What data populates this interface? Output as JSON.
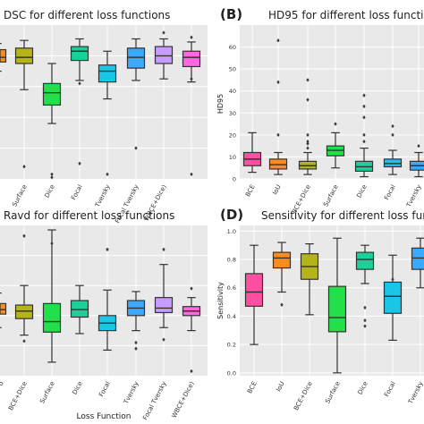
{
  "chart_data": [
    {
      "type": "box",
      "panel_label": "",
      "title": "DSC for different loss functions",
      "xlabel": "",
      "ylabel": "",
      "yticks": [],
      "ylim": [
        0.0,
        1.0
      ],
      "categories": [
        "BCE+Dice",
        "Surface",
        "Dice",
        "Focal",
        "Tversky",
        "Focal Tversky",
        "WBCE+Dice)"
      ],
      "first_box_partial": true,
      "colors": [
        "#ff8c1a",
        "#b5b51a",
        "#22e04a",
        "#1bd19a",
        "#19c6e6",
        "#3aa9ff",
        "#c89bff",
        "#ff66e0"
      ],
      "boxes": [
        {
          "q1": 0.76,
          "median": 0.79,
          "q3": 0.84,
          "whislo": 0.7,
          "whishi": 0.88,
          "fliers": []
        },
        {
          "q1": 0.75,
          "median": 0.79,
          "q3": 0.85,
          "whislo": 0.58,
          "whishi": 0.9,
          "fliers": [
            0.08
          ]
        },
        {
          "q1": 0.48,
          "median": 0.56,
          "q3": 0.62,
          "whislo": 0.36,
          "whishi": 0.75,
          "fliers": [
            0.03,
            0.01
          ]
        },
        {
          "q1": 0.77,
          "median": 0.83,
          "q3": 0.86,
          "whislo": 0.64,
          "whishi": 0.91,
          "fliers": [
            0.62,
            0.1
          ]
        },
        {
          "q1": 0.63,
          "median": 0.7,
          "q3": 0.74,
          "whislo": 0.52,
          "whishi": 0.83,
          "fliers": [
            0.03
          ]
        },
        {
          "q1": 0.72,
          "median": 0.79,
          "q3": 0.85,
          "whislo": 0.64,
          "whishi": 0.91,
          "fliers": [
            0.2
          ]
        },
        {
          "q1": 0.75,
          "median": 0.8,
          "q3": 0.86,
          "whislo": 0.65,
          "whishi": 0.91,
          "fliers": [
            0.95
          ]
        },
        {
          "q1": 0.73,
          "median": 0.79,
          "q3": 0.83,
          "whislo": 0.63,
          "whishi": 0.89,
          "fliers": [
            0.92,
            0.65,
            0.03
          ]
        }
      ]
    },
    {
      "type": "box",
      "panel_label": "(B)",
      "title": "HD95 for different loss functions",
      "xlabel": "",
      "ylabel": "HD95",
      "yticks": [
        0,
        10,
        20,
        30,
        40,
        50,
        60
      ],
      "ylim": [
        0,
        70
      ],
      "categories": [
        "BCE",
        "IoU",
        "BCE+Dice",
        "Surface",
        "Dice",
        "Focal",
        "Tversky"
      ],
      "colors": [
        "#ff4fa0",
        "#ff8c1a",
        "#b5b51a",
        "#22e04a",
        "#1bd19a",
        "#19c6e6",
        "#3aa9ff"
      ],
      "boxes": [
        {
          "q1": 6,
          "median": 9,
          "q3": 12,
          "whislo": 3,
          "whishi": 21,
          "fliers": []
        },
        {
          "q1": 4.5,
          "median": 6.5,
          "q3": 9,
          "whislo": 2,
          "whishi": 12,
          "fliers": [
            20,
            44,
            63
          ]
        },
        {
          "q1": 4.5,
          "median": 6,
          "q3": 8,
          "whislo": 2,
          "whishi": 12,
          "fliers": [
            14,
            16,
            17,
            20,
            36,
            45
          ]
        },
        {
          "q1": 10.5,
          "median": 13,
          "q3": 15,
          "whislo": 5,
          "whishi": 21,
          "fliers": [
            25
          ]
        },
        {
          "q1": 3.5,
          "median": 5.5,
          "q3": 8,
          "whislo": 1,
          "whishi": 14,
          "fliers": [
            17,
            20,
            28,
            33,
            38
          ]
        },
        {
          "q1": 5.5,
          "median": 7,
          "q3": 9,
          "whislo": 2,
          "whishi": 13,
          "fliers": [
            20,
            24
          ]
        },
        {
          "q1": 4,
          "median": 6,
          "q3": 8,
          "whislo": 1,
          "whishi": 12,
          "fliers": [
            15
          ]
        }
      ]
    },
    {
      "type": "box",
      "panel_label": "",
      "title": "Ravd for different loss functions",
      "xlabel": "Loss Function",
      "ylabel": "",
      "yticks": [],
      "ylim": [
        0.0,
        1.0
      ],
      "categories": [
        "o",
        "BCE+Dice",
        "Surface",
        "Dice",
        "Focal",
        "Tversky",
        "Focal Tversky",
        "WBCE+Dice)"
      ],
      "first_box_partial": true,
      "colors": [
        "#ff8c1a",
        "#b5b51a",
        "#22e04a",
        "#1bd19a",
        "#19c6e6",
        "#3aa9ff",
        "#c89bff",
        "#ff66e0"
      ],
      "boxes": [
        {
          "q1": 0.41,
          "median": 0.44,
          "q3": 0.48,
          "whislo": 0.32,
          "whishi": 0.55,
          "fliers": []
        },
        {
          "q1": 0.38,
          "median": 0.43,
          "q3": 0.47,
          "whislo": 0.27,
          "whishi": 0.6,
          "fliers": [
            0.93,
            0.23
          ]
        },
        {
          "q1": 0.29,
          "median": 0.36,
          "q3": 0.48,
          "whislo": 0.09,
          "whishi": 0.97,
          "fliers": [
            0.88
          ]
        },
        {
          "q1": 0.39,
          "median": 0.44,
          "q3": 0.5,
          "whislo": 0.28,
          "whishi": 0.6,
          "fliers": []
        },
        {
          "q1": 0.3,
          "median": 0.35,
          "q3": 0.4,
          "whislo": 0.17,
          "whishi": 0.57,
          "fliers": [
            0.84
          ]
        },
        {
          "q1": 0.4,
          "median": 0.45,
          "q3": 0.5,
          "whislo": 0.3,
          "whishi": 0.56,
          "fliers": [
            0.18,
            0.22
          ]
        },
        {
          "q1": 0.42,
          "median": 0.45,
          "q3": 0.52,
          "whislo": 0.32,
          "whishi": 0.74,
          "fliers": [
            0.84,
            0.24
          ]
        },
        {
          "q1": 0.4,
          "median": 0.43,
          "q3": 0.46,
          "whislo": 0.3,
          "whishi": 0.52,
          "fliers": [
            0.58,
            0.03
          ]
        }
      ]
    },
    {
      "type": "box",
      "panel_label": "(D)",
      "title": "Sensitivity for different loss functio",
      "xlabel": "",
      "ylabel": "Sensitivity",
      "yticks": [
        "0.0",
        "0.2",
        "0.4",
        "0.6",
        "0.8",
        "1.0"
      ],
      "ylim": [
        -0.02,
        1.04
      ],
      "categories": [
        "BCE",
        "IoU",
        "BCE+Dice",
        "Surface",
        "Dice",
        "Focal",
        "Tversky"
      ],
      "colors": [
        "#ff4fa0",
        "#ff8c1a",
        "#b5b51a",
        "#22e04a",
        "#1bd19a",
        "#19c6e6",
        "#3aa9ff"
      ],
      "boxes": [
        {
          "q1": 0.47,
          "median": 0.57,
          "q3": 0.7,
          "whislo": 0.2,
          "whishi": 0.9,
          "fliers": []
        },
        {
          "q1": 0.74,
          "median": 0.81,
          "q3": 0.85,
          "whislo": 0.57,
          "whishi": 0.92,
          "fliers": [
            0.48
          ]
        },
        {
          "q1": 0.66,
          "median": 0.75,
          "q3": 0.84,
          "whislo": 0.41,
          "whishi": 0.91,
          "fliers": []
        },
        {
          "q1": 0.29,
          "median": 0.39,
          "q3": 0.61,
          "whislo": 0.0,
          "whishi": 0.95,
          "fliers": []
        },
        {
          "q1": 0.73,
          "median": 0.8,
          "q3": 0.85,
          "whislo": 0.63,
          "whishi": 0.9,
          "fliers": [
            0.46,
            0.37,
            0.33
          ]
        },
        {
          "q1": 0.42,
          "median": 0.54,
          "q3": 0.64,
          "whislo": 0.23,
          "whishi": 0.83,
          "fliers": [
            0.66
          ]
        },
        {
          "q1": 0.73,
          "median": 0.81,
          "q3": 0.88,
          "whislo": 0.6,
          "whishi": 0.95,
          "fliers": []
        }
      ]
    }
  ]
}
